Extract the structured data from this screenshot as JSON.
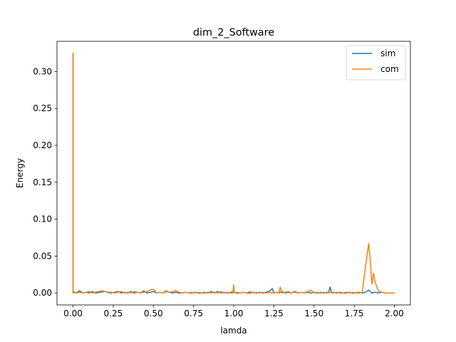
{
  "chart_data": {
    "type": "line",
    "title": "dim_2_Software",
    "xlabel": "lamda",
    "ylabel": "Energy",
    "xlim": [
      -0.1,
      2.1
    ],
    "ylim": [
      -0.0162,
      0.3409
    ],
    "xticks": [
      0.0,
      0.25,
      0.5,
      0.75,
      1.0,
      1.25,
      1.5,
      1.75,
      2.0
    ],
    "xtick_labels": [
      "0.00",
      "0.25",
      "0.50",
      "0.75",
      "1.00",
      "1.25",
      "1.50",
      "1.75",
      "2.00"
    ],
    "yticks": [
      0.0,
      0.05,
      0.1,
      0.15,
      0.2,
      0.25,
      0.3
    ],
    "ytick_labels": [
      "0.00",
      "0.05",
      "0.10",
      "0.15",
      "0.20",
      "0.25",
      "0.30"
    ],
    "grid": false,
    "legend_position": "upper right",
    "series": [
      {
        "name": "sim",
        "color": "#1f77b4",
        "x": [
          0.0,
          0.0,
          0.0,
          0.02,
          0.04,
          0.06,
          0.08,
          0.1,
          0.12,
          0.14,
          0.17,
          0.2,
          0.23,
          0.26,
          0.28,
          0.3,
          0.32,
          0.34,
          0.36,
          0.38,
          0.4,
          0.42,
          0.44,
          0.46,
          0.48,
          0.5,
          0.52,
          0.54,
          0.56,
          0.58,
          0.6,
          0.62,
          0.64,
          0.66,
          0.68,
          0.7,
          0.72,
          0.74,
          0.76,
          0.78,
          0.8,
          0.82,
          0.84,
          0.86,
          0.88,
          0.9,
          0.92,
          0.94,
          0.96,
          0.98,
          1.0,
          1.02,
          1.04,
          1.06,
          1.08,
          1.1,
          1.12,
          1.14,
          1.16,
          1.18,
          1.2,
          1.22,
          1.24,
          1.25,
          1.26,
          1.28,
          1.3,
          1.32,
          1.34,
          1.36,
          1.38,
          1.4,
          1.42,
          1.44,
          1.46,
          1.48,
          1.5,
          1.52,
          1.54,
          1.56,
          1.58,
          1.59,
          1.6,
          1.61,
          1.62,
          1.64,
          1.66,
          1.68,
          1.7,
          1.72,
          1.74,
          1.76,
          1.78,
          1.8,
          1.82,
          1.84,
          1.86,
          1.88,
          1.9,
          1.92,
          1.95,
          2.0
        ],
        "y": [
          0.0,
          0.324,
          0.002,
          0.0,
          0.003,
          0.0,
          0.001,
          0.0,
          0.002,
          0.0,
          0.001,
          0.002,
          0.0,
          0.001,
          0.002,
          0.0,
          0.001,
          0.0,
          0.002,
          0.0,
          0.001,
          0.0,
          0.003,
          0.0,
          0.001,
          0.002,
          0.0,
          0.001,
          0.0,
          0.002,
          0.001,
          0.0,
          0.001,
          0.0,
          0.0,
          0.001,
          0.0,
          0.0,
          0.001,
          0.0,
          0.0,
          0.001,
          0.0,
          0.002,
          0.0,
          0.002,
          0.0,
          0.001,
          0.0,
          0.001,
          0.001,
          0.0,
          0.0,
          0.001,
          0.0,
          0.0,
          0.001,
          0.0,
          0.001,
          0.0,
          0.001,
          0.002,
          0.006,
          0.0,
          0.001,
          0.0,
          0.002,
          0.0,
          0.001,
          0.0,
          0.002,
          0.0,
          0.001,
          0.0,
          0.001,
          0.0,
          0.001,
          0.0,
          0.001,
          0.0,
          0.001,
          0.0,
          0.008,
          0.0,
          0.001,
          0.0,
          0.001,
          0.0,
          0.0,
          0.001,
          0.0,
          0.0,
          0.001,
          0.0,
          0.001,
          0.004,
          0.0,
          0.001,
          0.0,
          0.001,
          0.0,
          0.0
        ]
      },
      {
        "name": "com",
        "color": "#ff7f0e",
        "x": [
          0.0,
          0.0,
          0.0,
          0.02,
          0.04,
          0.06,
          0.08,
          0.1,
          0.12,
          0.14,
          0.16,
          0.18,
          0.2,
          0.22,
          0.24,
          0.26,
          0.28,
          0.3,
          0.32,
          0.34,
          0.36,
          0.38,
          0.4,
          0.42,
          0.44,
          0.46,
          0.48,
          0.5,
          0.52,
          0.54,
          0.56,
          0.58,
          0.6,
          0.62,
          0.64,
          0.66,
          0.68,
          0.7,
          0.72,
          0.74,
          0.76,
          0.78,
          0.8,
          0.82,
          0.84,
          0.86,
          0.88,
          0.9,
          0.92,
          0.94,
          0.96,
          0.98,
          0.995,
          1.0,
          1.005,
          1.02,
          1.04,
          1.06,
          1.08,
          1.1,
          1.12,
          1.14,
          1.16,
          1.18,
          1.2,
          1.22,
          1.24,
          1.26,
          1.28,
          1.29,
          1.3,
          1.32,
          1.34,
          1.36,
          1.38,
          1.4,
          1.42,
          1.44,
          1.46,
          1.48,
          1.5,
          1.52,
          1.54,
          1.56,
          1.58,
          1.6,
          1.62,
          1.64,
          1.66,
          1.68,
          1.7,
          1.72,
          1.74,
          1.76,
          1.78,
          1.8,
          1.82,
          1.84,
          1.85,
          1.86,
          1.87,
          1.88,
          1.9,
          1.92,
          1.95,
          2.0
        ],
        "y": [
          0.0,
          0.325,
          0.001,
          0.0,
          0.001,
          0.0,
          0.001,
          0.002,
          0.0,
          0.001,
          0.002,
          0.003,
          0.002,
          0.001,
          0.001,
          0.0,
          0.001,
          0.002,
          0.0,
          0.001,
          0.0,
          0.002,
          0.001,
          0.0,
          0.001,
          0.002,
          0.004,
          0.005,
          0.0,
          0.001,
          0.0,
          0.003,
          0.001,
          0.002,
          0.003,
          0.001,
          0.0,
          0.001,
          0.0,
          0.001,
          0.0,
          0.001,
          0.0,
          0.0,
          0.001,
          0.0,
          0.001,
          0.0,
          0.002,
          0.0,
          0.001,
          0.0,
          0.0,
          0.011,
          0.0,
          0.001,
          0.0,
          0.001,
          0.0,
          0.002,
          0.0,
          0.001,
          0.0,
          0.001,
          0.0,
          0.001,
          0.0,
          0.001,
          0.0,
          0.008,
          0.0,
          0.001,
          0.002,
          0.0,
          0.001,
          0.0,
          0.001,
          0.0,
          0.002,
          0.004,
          0.0,
          0.001,
          0.0,
          0.001,
          0.0,
          0.001,
          0.0,
          0.001,
          0.0,
          0.0,
          0.001,
          0.0,
          0.001,
          0.0,
          0.0,
          0.001,
          0.035,
          0.067,
          0.045,
          0.012,
          0.027,
          0.015,
          0.003,
          0.001,
          0.0,
          0.0
        ]
      }
    ]
  }
}
